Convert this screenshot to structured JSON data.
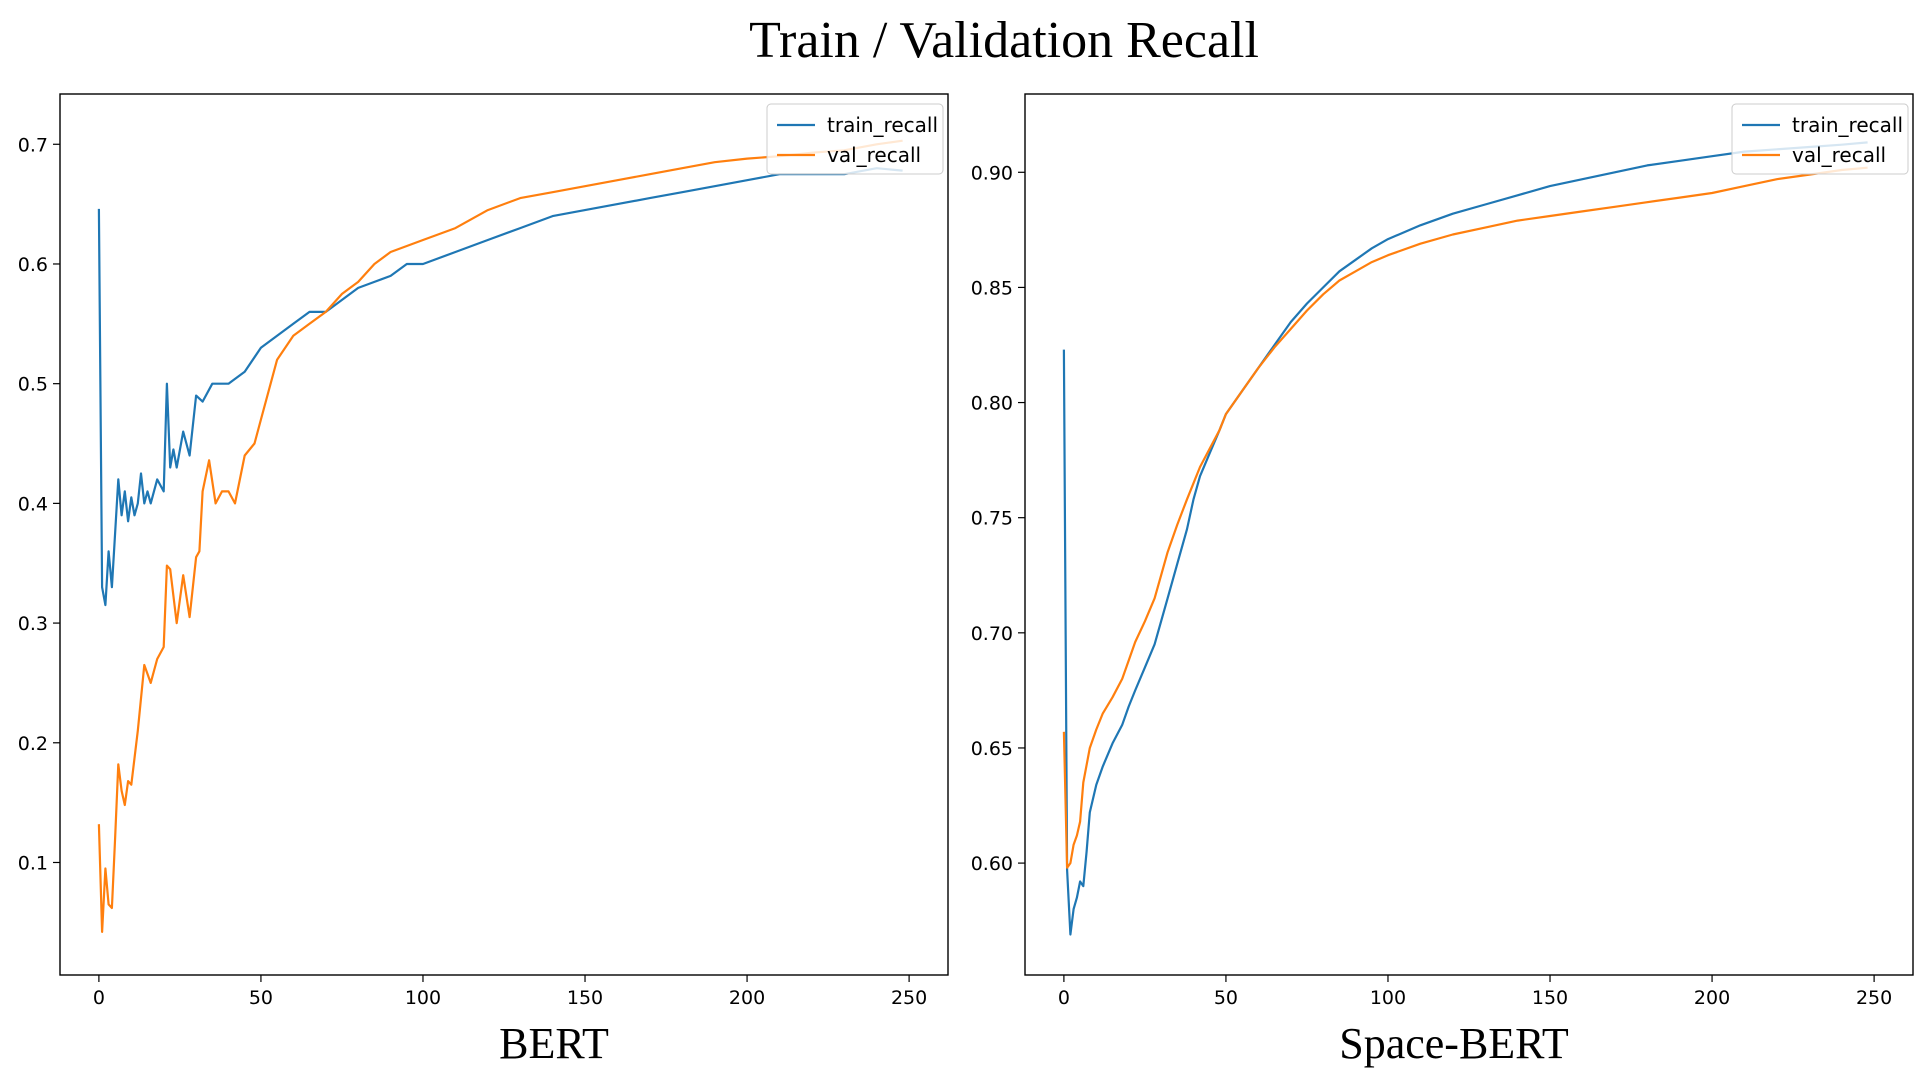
{
  "suptitle": "Train / Validation Recall",
  "colors": {
    "train": "#1f77b4",
    "val": "#ff7f0e"
  },
  "chart_data": [
    {
      "type": "line",
      "title": "BERT",
      "xlabel": "",
      "ylabel": "",
      "xlim": [
        -12,
        262
      ],
      "ylim": [
        0.006,
        0.742
      ],
      "xticks": [
        0,
        50,
        100,
        150,
        200,
        250
      ],
      "yticks": [
        0.1,
        0.2,
        0.3,
        0.4,
        0.5,
        0.6,
        0.7
      ],
      "ytick_labels": [
        "0.1",
        "0.2",
        "0.3",
        "0.4",
        "0.5",
        "0.6",
        "0.7"
      ],
      "legend_position": "top-right",
      "grid": false,
      "series": [
        {
          "name": "train_recall",
          "color": "#1f77b4",
          "x": [
            0,
            1,
            2,
            3,
            4,
            5,
            6,
            7,
            8,
            9,
            10,
            11,
            12,
            13,
            14,
            15,
            16,
            18,
            20,
            21,
            22,
            23,
            24,
            26,
            28,
            30,
            32,
            35,
            40,
            45,
            50,
            55,
            60,
            65,
            70,
            75,
            80,
            85,
            90,
            95,
            100,
            110,
            120,
            130,
            140,
            150,
            160,
            170,
            180,
            190,
            200,
            210,
            220,
            230,
            240,
            248
          ],
          "y": [
            0.646,
            0.33,
            0.315,
            0.36,
            0.33,
            0.375,
            0.42,
            0.39,
            0.41,
            0.385,
            0.405,
            0.39,
            0.4,
            0.425,
            0.4,
            0.41,
            0.4,
            0.42,
            0.41,
            0.5,
            0.43,
            0.445,
            0.43,
            0.46,
            0.44,
            0.49,
            0.485,
            0.5,
            0.5,
            0.51,
            0.53,
            0.54,
            0.55,
            0.56,
            0.56,
            0.57,
            0.58,
            0.585,
            0.59,
            0.6,
            0.6,
            0.61,
            0.62,
            0.63,
            0.64,
            0.645,
            0.65,
            0.655,
            0.66,
            0.665,
            0.67,
            0.675,
            0.675,
            0.675,
            0.68,
            0.678
          ]
        },
        {
          "name": "val_recall",
          "color": "#ff7f0e",
          "x": [
            0,
            1,
            2,
            3,
            4,
            5,
            6,
            7,
            8,
            9,
            10,
            12,
            14,
            16,
            18,
            20,
            21,
            22,
            24,
            26,
            28,
            30,
            31,
            32,
            34,
            36,
            38,
            40,
            42,
            45,
            48,
            50,
            55,
            60,
            65,
            70,
            75,
            80,
            85,
            90,
            95,
            100,
            110,
            120,
            130,
            140,
            150,
            160,
            170,
            180,
            190,
            200,
            210,
            220,
            230,
            240,
            248
          ],
          "y": [
            0.132,
            0.042,
            0.095,
            0.065,
            0.062,
            0.12,
            0.182,
            0.16,
            0.148,
            0.168,
            0.165,
            0.21,
            0.265,
            0.25,
            0.27,
            0.28,
            0.348,
            0.345,
            0.3,
            0.34,
            0.305,
            0.355,
            0.36,
            0.41,
            0.436,
            0.4,
            0.41,
            0.41,
            0.4,
            0.44,
            0.45,
            0.47,
            0.52,
            0.54,
            0.55,
            0.56,
            0.575,
            0.585,
            0.6,
            0.61,
            0.615,
            0.62,
            0.63,
            0.645,
            0.655,
            0.66,
            0.665,
            0.67,
            0.675,
            0.68,
            0.685,
            0.688,
            0.69,
            0.693,
            0.695,
            0.7,
            0.703
          ]
        }
      ]
    },
    {
      "type": "line",
      "title": "Space-BERT",
      "xlabel": "",
      "ylabel": "",
      "xlim": [
        -12,
        262
      ],
      "ylim": [
        0.5514,
        0.934
      ],
      "xticks": [
        0,
        50,
        100,
        150,
        200,
        250
      ],
      "yticks": [
        0.6,
        0.65,
        0.7,
        0.75,
        0.8,
        0.85,
        0.9
      ],
      "ytick_labels": [
        "0.60",
        "0.65",
        "0.70",
        "0.75",
        "0.80",
        "0.85",
        "0.90"
      ],
      "legend_position": "top-right",
      "grid": false,
      "series": [
        {
          "name": "train_recall",
          "color": "#1f77b4",
          "x": [
            0,
            1,
            2,
            3,
            4,
            5,
            6,
            7,
            8,
            10,
            12,
            15,
            18,
            20,
            22,
            25,
            28,
            30,
            32,
            35,
            38,
            40,
            42,
            45,
            48,
            50,
            55,
            60,
            65,
            70,
            75,
            80,
            85,
            90,
            95,
            100,
            110,
            120,
            130,
            140,
            150,
            160,
            170,
            180,
            190,
            200,
            210,
            220,
            230,
            240,
            248
          ],
          "y": [
            0.823,
            0.597,
            0.569,
            0.58,
            0.585,
            0.592,
            0.59,
            0.605,
            0.622,
            0.634,
            0.642,
            0.652,
            0.66,
            0.668,
            0.675,
            0.685,
            0.695,
            0.705,
            0.715,
            0.73,
            0.745,
            0.758,
            0.768,
            0.778,
            0.788,
            0.795,
            0.805,
            0.815,
            0.825,
            0.835,
            0.843,
            0.85,
            0.857,
            0.862,
            0.867,
            0.871,
            0.877,
            0.882,
            0.886,
            0.89,
            0.894,
            0.897,
            0.9,
            0.903,
            0.905,
            0.907,
            0.909,
            0.91,
            0.911,
            0.912,
            0.913
          ]
        },
        {
          "name": "val_recall",
          "color": "#ff7f0e",
          "x": [
            0,
            1,
            2,
            3,
            4,
            5,
            6,
            8,
            10,
            12,
            15,
            18,
            20,
            22,
            25,
            28,
            30,
            32,
            35,
            38,
            40,
            42,
            45,
            48,
            50,
            55,
            60,
            65,
            70,
            75,
            80,
            85,
            90,
            95,
            100,
            110,
            120,
            130,
            140,
            150,
            160,
            170,
            180,
            190,
            200,
            210,
            220,
            230,
            240,
            248
          ],
          "y": [
            0.657,
            0.598,
            0.6,
            0.608,
            0.612,
            0.618,
            0.635,
            0.65,
            0.658,
            0.665,
            0.672,
            0.68,
            0.688,
            0.696,
            0.705,
            0.715,
            0.725,
            0.735,
            0.747,
            0.758,
            0.765,
            0.772,
            0.78,
            0.788,
            0.795,
            0.805,
            0.815,
            0.824,
            0.832,
            0.84,
            0.847,
            0.853,
            0.857,
            0.861,
            0.864,
            0.869,
            0.873,
            0.876,
            0.879,
            0.881,
            0.883,
            0.885,
            0.887,
            0.889,
            0.891,
            0.894,
            0.897,
            0.899,
            0.901,
            0.902
          ]
        }
      ]
    }
  ]
}
